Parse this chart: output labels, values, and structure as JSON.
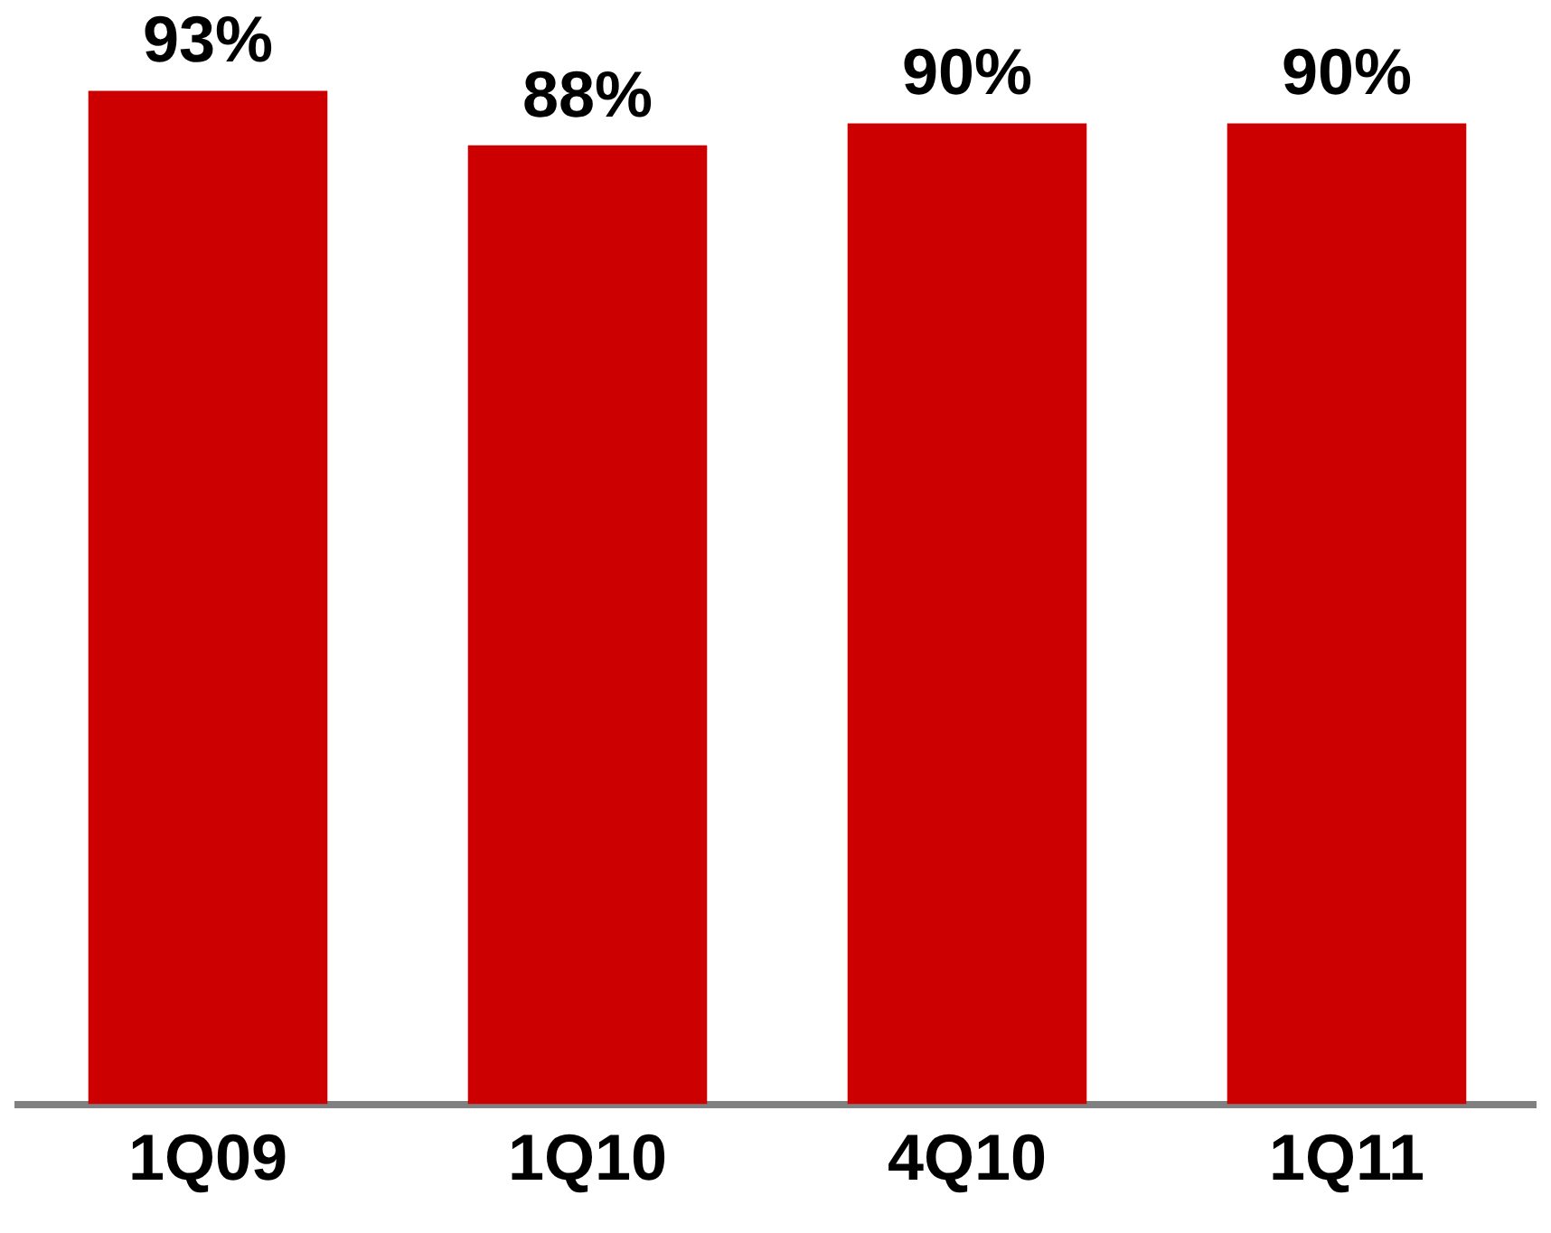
{
  "chart_data": {
    "type": "bar",
    "categories": [
      "1Q09",
      "1Q10",
      "4Q10",
      "1Q11"
    ],
    "values": [
      93,
      88,
      90,
      90
    ],
    "value_labels": [
      "93%",
      "88%",
      "90%",
      "90%"
    ],
    "color": "#cc0000",
    "grid": false,
    "legend": false,
    "tick_labels": "x"
  }
}
